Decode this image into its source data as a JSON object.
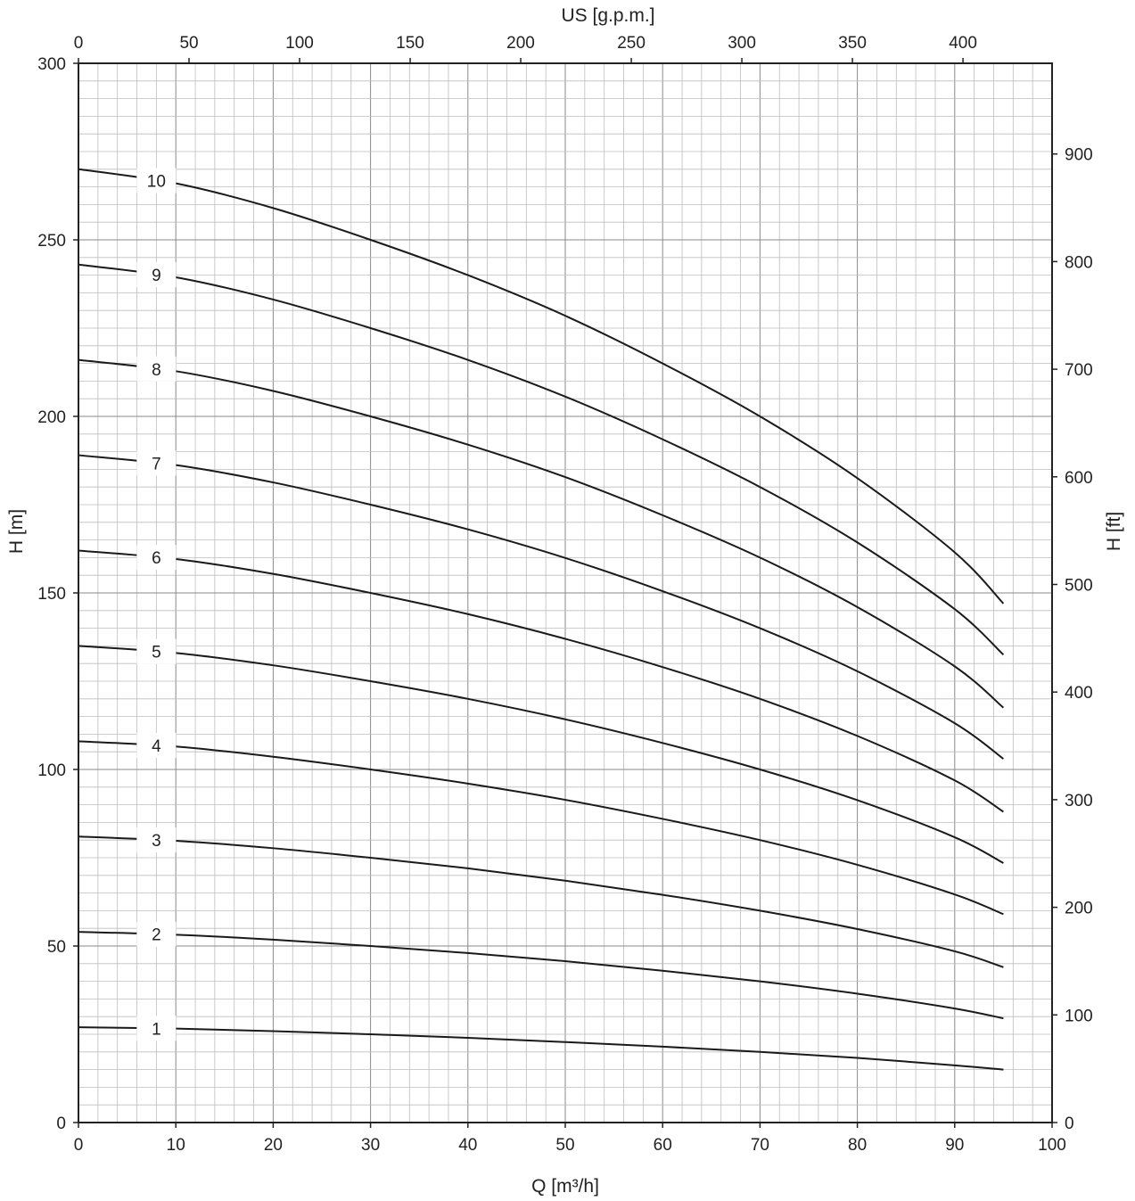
{
  "chart_data": {
    "type": "line",
    "xlabel": "Q [m³/h]",
    "ylabel": "H [m]",
    "x2label": "US [g.p.m.]",
    "y2label": "H [ft]",
    "xlim": [
      0,
      100
    ],
    "ylim": [
      0,
      300
    ],
    "x2lim_gpm": [
      0,
      440.29
    ],
    "y2lim_ft": [
      0,
      984.25
    ],
    "grid": true,
    "x_ticks": [
      "0",
      "10",
      "20",
      "30",
      "40",
      "50",
      "60",
      "70",
      "80",
      "90",
      "100"
    ],
    "y_ticks": [
      "0",
      "50",
      "100",
      "150",
      "200",
      "250",
      "300"
    ],
    "x2_ticks": [
      "0",
      "50",
      "100",
      "150",
      "200",
      "250",
      "300",
      "350",
      "400"
    ],
    "y2_ticks": [
      "0",
      "100",
      "200",
      "300",
      "400",
      "500",
      "600",
      "700",
      "800",
      "900"
    ],
    "x": [
      0,
      10,
      20,
      30,
      40,
      50,
      60,
      70,
      80,
      90,
      95
    ],
    "series": [
      {
        "name": "1",
        "values": [
          27,
          26.6,
          25.9,
          25,
          24,
          22.8,
          21.5,
          20,
          18.3,
          16.2,
          15
        ]
      },
      {
        "name": "2",
        "values": [
          54,
          53.2,
          51.8,
          50,
          48,
          45.7,
          43,
          40,
          36.5,
          32.3,
          29.5
        ]
      },
      {
        "name": "3",
        "values": [
          81,
          79.8,
          77.7,
          75,
          72,
          68.5,
          64.5,
          60,
          54.8,
          48.5,
          44
        ]
      },
      {
        "name": "4",
        "values": [
          108,
          106.5,
          103.6,
          100,
          96,
          91.4,
          86,
          80,
          73,
          64.6,
          59
        ]
      },
      {
        "name": "5",
        "values": [
          135,
          133,
          129.5,
          125,
          120,
          114.2,
          107.5,
          100,
          91.3,
          80.8,
          73.5
        ]
      },
      {
        "name": "6",
        "values": [
          162,
          159.6,
          155.4,
          150,
          144,
          137,
          129,
          120,
          109.5,
          96.9,
          88
        ]
      },
      {
        "name": "7",
        "values": [
          189,
          186.2,
          181.3,
          175,
          168,
          159.9,
          150.5,
          140,
          127.8,
          113.1,
          103
        ]
      },
      {
        "name": "8",
        "values": [
          216,
          212.8,
          207.2,
          200,
          192,
          182.8,
          172,
          160,
          146,
          129.2,
          117.5
        ]
      },
      {
        "name": "9",
        "values": [
          243,
          239.4,
          233.1,
          225,
          216,
          205.6,
          193.5,
          180,
          164.3,
          145.4,
          132.5
        ]
      },
      {
        "name": "10",
        "values": [
          270,
          266,
          259,
          250,
          240,
          228.5,
          215,
          200,
          182.5,
          161.5,
          147
        ]
      }
    ]
  }
}
